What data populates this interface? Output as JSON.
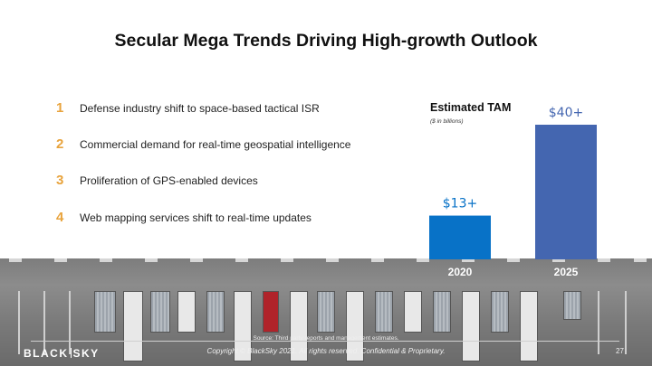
{
  "title": "Secular Mega Trends Driving High-growth Outlook",
  "trends": [
    {
      "number": "1",
      "text": "Defense industry shift to space-based tactical ISR"
    },
    {
      "number": "2",
      "text": "Commercial demand for real-time geospatial intelligence"
    },
    {
      "number": "3",
      "text": "Proliferation of GPS-enabled devices"
    },
    {
      "number": "4",
      "text": "Web mapping services shift to real-time updates"
    }
  ],
  "chart_data": {
    "type": "bar",
    "title": "Estimated TAM",
    "subtitle": "($ in billions)",
    "categories": [
      "2020",
      "2025"
    ],
    "values": [
      13,
      40
    ],
    "data_labels": [
      "$13+",
      "$40+"
    ],
    "colors": [
      "#0872c7",
      "#4466b0"
    ],
    "legend": false,
    "grid": false
  },
  "footer": {
    "source": "Source:  Third party reports and management estimates.",
    "copyright": "Copyright © BlackSky 2021.  All rights reserved. Confidential & Proprietary.",
    "page_number": "27",
    "logo_left": "BLACK",
    "logo_right": "SKY"
  },
  "colors": {
    "accent_number": "#e8a33c",
    "label": "#111111"
  }
}
